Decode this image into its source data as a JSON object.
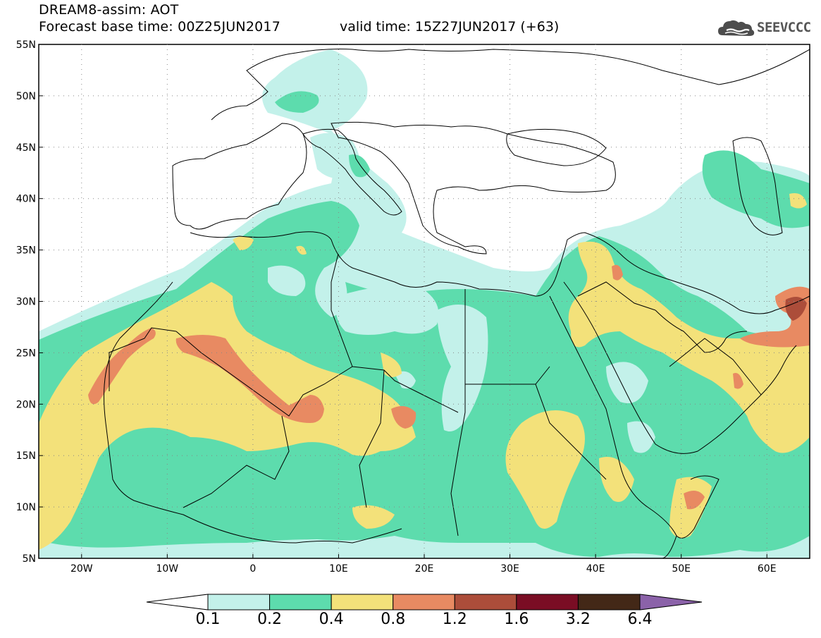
{
  "header": {
    "line1": "DREAM8-assim: AOT",
    "line2": "Forecast base time: 00Z25JUN2017",
    "valid": "valid time: 15Z27JUN2017 (+63)",
    "logo_text": "SEEVCCC"
  },
  "axes": {
    "lat_labels": [
      "55N",
      "50N",
      "45N",
      "40N",
      "35N",
      "30N",
      "25N",
      "20N",
      "15N",
      "10N",
      "5N"
    ],
    "lon_labels": [
      "20W",
      "10W",
      "0",
      "10E",
      "20E",
      "30E",
      "40E",
      "50E",
      "60E"
    ]
  },
  "colorbar": {
    "labels": [
      "0.1",
      "0.2",
      "0.4",
      "0.8",
      "1.2",
      "1.6",
      "3.2",
      "6.4"
    ],
    "colors": [
      "#ffffff",
      "#c3f1ea",
      "#5ddcad",
      "#f3e17a",
      "#e88a62",
      "#ac4d3a",
      "#7a0d24",
      "#432817",
      "#8b62a9"
    ]
  },
  "colors": {
    "c01": "#c3f1ea",
    "c02": "#5ddcad",
    "c04": "#f3e17a",
    "c08": "#e88a62",
    "c12": "#ac4d3a"
  }
}
